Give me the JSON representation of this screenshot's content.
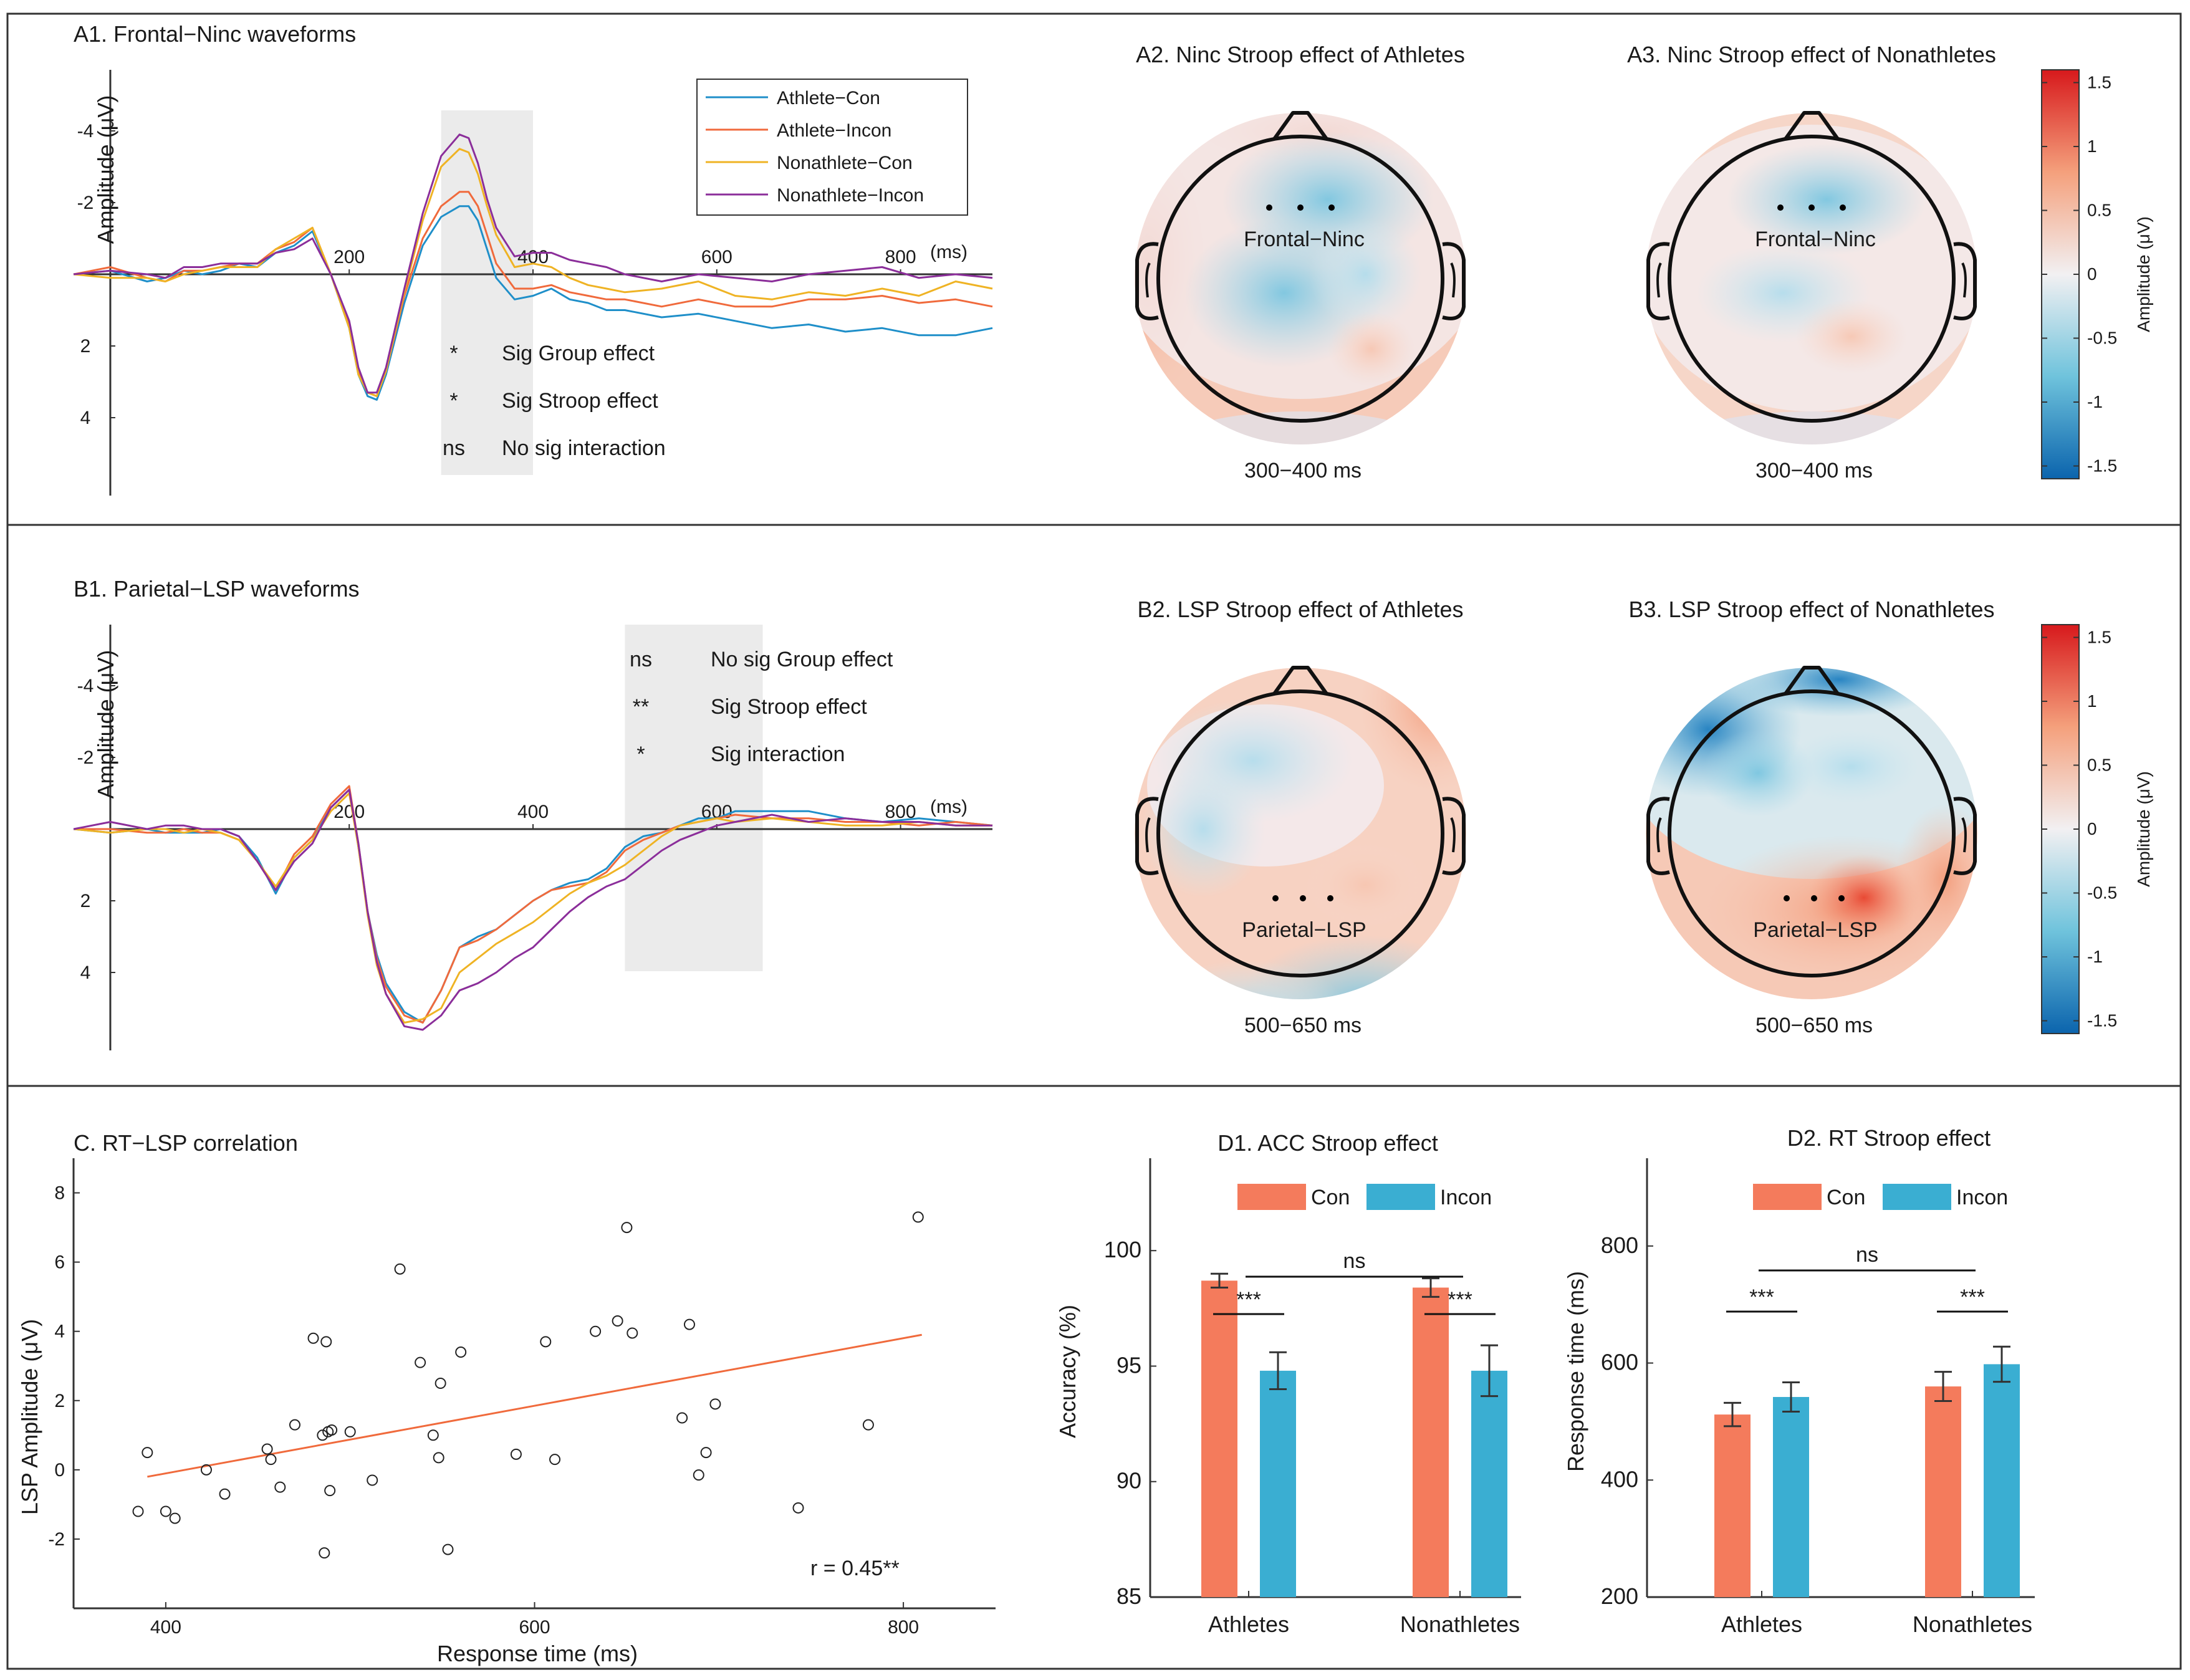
{
  "chart_data": [
    {
      "id": "A1",
      "type": "line",
      "title": "A1. Frontal−Ninc waveforms",
      "xlabel": "(ms)",
      "ylabel": "Amplitude (μV)",
      "xlim": [
        -100,
        900
      ],
      "ylim_inverted": [
        -5.8,
        6
      ],
      "x_ticks": [
        "200",
        "400",
        "600",
        "800"
      ],
      "y_ticks": [
        "-4",
        "-2",
        "2",
        "4"
      ],
      "window_ms": [
        300,
        400
      ],
      "legend": [
        "Athlete−Con",
        "Athlete−Incon",
        "Nonathlete−Con",
        "Nonathlete−Incon"
      ],
      "annotations": [
        {
          "mark": "*",
          "text": "Sig Group effect"
        },
        {
          "mark": "*",
          "text": "Sig Stroop effect"
        },
        {
          "mark": "ns",
          "text": "No sig interaction"
        }
      ],
      "x": [
        -100,
        -60,
        -20,
        0,
        20,
        40,
        60,
        80,
        100,
        120,
        140,
        160,
        180,
        200,
        210,
        220,
        230,
        240,
        260,
        280,
        300,
        320,
        330,
        340,
        350,
        360,
        380,
        400,
        420,
        440,
        460,
        480,
        500,
        540,
        580,
        620,
        660,
        700,
        740,
        780,
        820,
        860,
        900
      ],
      "series": [
        {
          "name": "Athlete−Con",
          "color": "#1f8fc9",
          "values": [
            0,
            -0.1,
            0.2,
            0.1,
            -0.1,
            0,
            -0.1,
            -0.3,
            -0.2,
            -0.6,
            -0.8,
            -1.2,
            0,
            1.5,
            2.8,
            3.4,
            3.5,
            2.8,
            0.8,
            -0.8,
            -1.6,
            -1.9,
            -1.9,
            -1.5,
            -0.7,
            0.1,
            0.7,
            0.6,
            0.4,
            0.7,
            0.8,
            1,
            1,
            1.2,
            1.1,
            1.3,
            1.5,
            1.4,
            1.6,
            1.5,
            1.7,
            1.7,
            1.5
          ]
        },
        {
          "name": "Athlete−Incon",
          "color": "#f06a3c",
          "values": [
            0,
            -0.2,
            0.1,
            0.2,
            -0.1,
            -0.1,
            -0.2,
            -0.3,
            -0.3,
            -0.7,
            -0.9,
            -1.3,
            0,
            1.4,
            2.7,
            3.3,
            3.4,
            2.7,
            0.6,
            -1.0,
            -1.9,
            -2.3,
            -2.3,
            -1.9,
            -1.1,
            -0.3,
            0.4,
            0.4,
            0.3,
            0.5,
            0.6,
            0.7,
            0.7,
            0.9,
            0.7,
            0.9,
            0.9,
            0.7,
            0.7,
            0.6,
            0.8,
            0.7,
            0.9
          ]
        },
        {
          "name": "Nonathlete−Con",
          "color": "#efb324",
          "values": [
            0,
            0.1,
            0.1,
            0.2,
            0,
            -0.1,
            -0.2,
            -0.2,
            -0.2,
            -0.7,
            -1.0,
            -1.3,
            0,
            1.5,
            2.8,
            3.3,
            3.4,
            2.7,
            0.5,
            -1.5,
            -3.0,
            -3.5,
            -3.4,
            -2.8,
            -1.9,
            -1.1,
            -0.2,
            -0.3,
            -0.2,
            0.1,
            0.3,
            0.4,
            0.5,
            0.4,
            0.2,
            0.6,
            0.7,
            0.5,
            0.6,
            0.4,
            0.6,
            0.2,
            0.4
          ]
        },
        {
          "name": "Nonathlete−Incon",
          "color": "#8b2e9a",
          "values": [
            0,
            -0.1,
            0,
            0.1,
            -0.2,
            -0.2,
            -0.3,
            -0.3,
            -0.3,
            -0.6,
            -0.7,
            -1.0,
            0,
            1.3,
            2.6,
            3.3,
            3.3,
            2.6,
            0.4,
            -1.7,
            -3.3,
            -3.9,
            -3.8,
            -3.1,
            -2.1,
            -1.3,
            -0.5,
            -0.6,
            -0.6,
            -0.4,
            -0.3,
            -0.2,
            0,
            0.2,
            0,
            0.1,
            0.2,
            0,
            -0.1,
            -0.2,
            0.1,
            0,
            0.1
          ]
        }
      ]
    },
    {
      "id": "B1",
      "type": "line",
      "title": "B1. Parietal−LSP waveforms",
      "xlabel": "(ms)",
      "ylabel": "Amplitude (μV)",
      "xlim": [
        -100,
        900
      ],
      "ylim_inverted": [
        -5.8,
        6
      ],
      "x_ticks": [
        "200",
        "400",
        "600",
        "800"
      ],
      "y_ticks": [
        "-4",
        "-2",
        "2",
        "4"
      ],
      "window_ms": [
        500,
        650
      ],
      "annotations": [
        {
          "mark": "ns",
          "text": "No sig Group effect"
        },
        {
          "mark": "**",
          "text": "Sig Stroop effect"
        },
        {
          "mark": "*",
          "text": "Sig interaction"
        }
      ],
      "x": [
        -100,
        -60,
        -20,
        0,
        20,
        40,
        60,
        80,
        100,
        120,
        140,
        160,
        180,
        200,
        210,
        220,
        230,
        240,
        260,
        280,
        300,
        320,
        340,
        360,
        380,
        400,
        420,
        440,
        460,
        480,
        500,
        520,
        540,
        560,
        580,
        600,
        620,
        660,
        700,
        740,
        780,
        820,
        860,
        900
      ],
      "series": [
        {
          "name": "Athlete−Con",
          "color": "#1f8fc9",
          "values": [
            0,
            0.1,
            0,
            0.1,
            0.1,
            0.1,
            0,
            0.2,
            0.8,
            1.8,
            0.8,
            0.3,
            -0.6,
            -1.1,
            0.5,
            2.3,
            3.5,
            4.3,
            5.1,
            5.4,
            4.5,
            3.3,
            3.0,
            2.8,
            2.4,
            2.0,
            1.7,
            1.5,
            1.4,
            1.1,
            0.5,
            0.2,
            0.1,
            -0.1,
            -0.3,
            -0.3,
            -0.5,
            -0.5,
            -0.5,
            -0.3,
            -0.2,
            -0.3,
            -0.2,
            -0.1
          ]
        },
        {
          "name": "Athlete−Incon",
          "color": "#f06a3c",
          "values": [
            0,
            0,
            0.1,
            0.1,
            0,
            0.1,
            0.1,
            0.3,
            0.9,
            1.7,
            0.7,
            0.2,
            -0.7,
            -1.2,
            0.4,
            2.3,
            3.6,
            4.4,
            5.2,
            5.4,
            4.5,
            3.3,
            3.1,
            2.8,
            2.4,
            2.0,
            1.7,
            1.6,
            1.5,
            1.2,
            0.6,
            0.3,
            0.1,
            -0.1,
            -0.2,
            -0.3,
            -0.4,
            -0.3,
            -0.3,
            -0.2,
            -0.2,
            -0.1,
            -0.2,
            -0.1
          ]
        },
        {
          "name": "Nonathlete−Con",
          "color": "#efb324",
          "values": [
            0,
            0.1,
            0,
            0,
            0.1,
            0,
            0.1,
            0.3,
            0.9,
            1.6,
            0.8,
            0.3,
            -0.5,
            -1.0,
            0.5,
            2.4,
            3.8,
            4.6,
            5.4,
            5.3,
            5.0,
            4.0,
            3.6,
            3.2,
            2.9,
            2.6,
            2.2,
            1.8,
            1.5,
            1.3,
            1.0,
            0.6,
            0.2,
            -0.1,
            -0.2,
            -0.3,
            -0.2,
            -0.3,
            -0.2,
            -0.1,
            -0.1,
            -0.2,
            -0.1,
            -0.1
          ]
        },
        {
          "name": "Nonathlete−Incon",
          "color": "#8b2e9a",
          "values": [
            0,
            -0.2,
            0,
            -0.1,
            -0.1,
            0,
            0,
            0.2,
            0.9,
            1.7,
            0.9,
            0.4,
            -0.6,
            -1.1,
            0.4,
            2.3,
            3.7,
            4.6,
            5.5,
            5.6,
            5.2,
            4.5,
            4.3,
            4.0,
            3.6,
            3.3,
            2.8,
            2.3,
            1.9,
            1.6,
            1.4,
            1.0,
            0.6,
            0.3,
            0.1,
            -0.1,
            -0.2,
            -0.4,
            -0.2,
            -0.3,
            -0.2,
            -0.2,
            -0.1,
            -0.1
          ]
        }
      ]
    },
    {
      "id": "A2",
      "type": "heatmap",
      "title": "A2. Ninc Stroop effect of Athletes",
      "caption": "300−400 ms",
      "roi_label": "Frontal−Ninc",
      "colorbar_ticks": [
        "1.5",
        "1",
        "0.5",
        "0",
        "-0.5",
        "-1",
        "-1.5"
      ],
      "colorbar_label": "Amplitude (μV)"
    },
    {
      "id": "A3",
      "type": "heatmap",
      "title": "A3. Ninc Stroop effect of Nonathletes",
      "caption": "300−400 ms",
      "roi_label": "Frontal−Ninc"
    },
    {
      "id": "B2",
      "type": "heatmap",
      "title": "B2. LSP Stroop effect of Athletes",
      "caption": "500−650 ms",
      "roi_label": "Parietal−LSP",
      "colorbar_ticks": [
        "1.5",
        "1",
        "0.5",
        "0",
        "-0.5",
        "-1",
        "-1.5"
      ],
      "colorbar_label": "Amplitude (μV)"
    },
    {
      "id": "B3",
      "type": "heatmap",
      "title": "B3. LSP Stroop effect of Nonathletes",
      "caption": "500−650 ms",
      "roi_label": "Parietal−LSP"
    },
    {
      "id": "C",
      "type": "scatter",
      "title": "C. RT−LSP correlation",
      "xlabel": "Response time (ms)",
      "ylabel": "LSP Amplitude (μV)",
      "xlim": [
        350,
        850
      ],
      "ylim": [
        -4,
        9
      ],
      "x_ticks": [
        "400",
        "600",
        "800"
      ],
      "y_ticks": [
        "-2",
        "0",
        "2",
        "4",
        "6",
        "8"
      ],
      "annotation": "r = 0.45**",
      "fit_line": {
        "x": [
          390,
          810
        ],
        "y": [
          -0.2,
          3.9
        ],
        "color": "#f06a3c"
      },
      "points": [
        [
          385,
          -1.2
        ],
        [
          390,
          0.5
        ],
        [
          400,
          -1.2
        ],
        [
          405,
          -1.4
        ],
        [
          422,
          0
        ],
        [
          432,
          -0.7
        ],
        [
          455,
          0.6
        ],
        [
          457,
          0.3
        ],
        [
          462,
          -0.5
        ],
        [
          470,
          1.3
        ],
        [
          480,
          3.8
        ],
        [
          485,
          1.0
        ],
        [
          486,
          -2.4
        ],
        [
          487,
          3.7
        ],
        [
          488,
          1.1
        ],
        [
          489,
          -0.6
        ],
        [
          490,
          1.15
        ],
        [
          500,
          1.1
        ],
        [
          512,
          -0.3
        ],
        [
          527,
          5.8
        ],
        [
          538,
          3.1
        ],
        [
          545,
          1.0
        ],
        [
          548,
          0.35
        ],
        [
          549,
          2.5
        ],
        [
          553,
          -2.3
        ],
        [
          560,
          3.4
        ],
        [
          590,
          0.45
        ],
        [
          606,
          3.7
        ],
        [
          611,
          0.3
        ],
        [
          633,
          4.0
        ],
        [
          645,
          4.3
        ],
        [
          650,
          7.0
        ],
        [
          653,
          3.95
        ],
        [
          680,
          1.5
        ],
        [
          684,
          4.2
        ],
        [
          689,
          -0.15
        ],
        [
          693,
          0.5
        ],
        [
          698,
          1.9
        ],
        [
          743,
          -1.1
        ],
        [
          781,
          1.3
        ],
        [
          808,
          7.3
        ]
      ]
    },
    {
      "id": "D1",
      "type": "bar",
      "title": "D1. ACC Stroop effect",
      "ylabel": "Accuracy (%)",
      "ylim": [
        85,
        104
      ],
      "y_ticks": [
        "85",
        "90",
        "95",
        "100"
      ],
      "categories": [
        "Athletes",
        "Nonathletes"
      ],
      "series": [
        {
          "name": "Con",
          "color": "#f47b5c",
          "values": [
            98.7,
            98.4
          ],
          "errors": [
            0.3,
            0.4
          ]
        },
        {
          "name": "Incon",
          "color": "#3aaed2",
          "values": [
            94.8,
            94.8
          ],
          "errors": [
            0.8,
            1.1
          ]
        }
      ],
      "sig_within": [
        "***",
        "***"
      ],
      "sig_between": "ns"
    },
    {
      "id": "D2",
      "type": "bar",
      "title": "D2. RT Stroop effect",
      "ylabel": "Response time (ms)",
      "ylim": [
        200,
        950
      ],
      "y_ticks": [
        "200",
        "400",
        "600",
        "800"
      ],
      "categories": [
        "Athletes",
        "Nonathletes"
      ],
      "series": [
        {
          "name": "Con",
          "color": "#f47b5c",
          "values": [
            512,
            560
          ],
          "errors": [
            20,
            25
          ]
        },
        {
          "name": "Incon",
          "color": "#3aaed2",
          "values": [
            542,
            598
          ],
          "errors": [
            25,
            30
          ]
        }
      ],
      "sig_within": [
        "***",
        "***"
      ],
      "sig_between": "ns"
    }
  ]
}
